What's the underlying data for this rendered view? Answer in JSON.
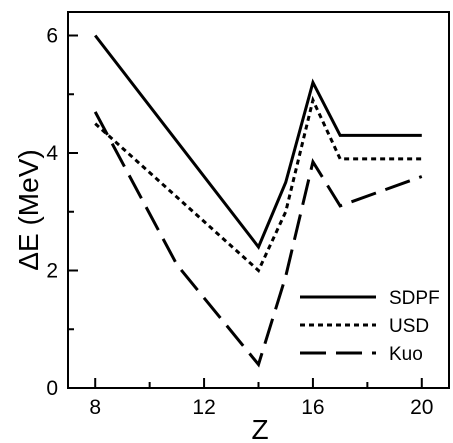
{
  "chart_data": {
    "type": "line",
    "title": "",
    "xlabel": "Z",
    "ylabel": "ΔE (MeV)",
    "xlim": [
      7,
      21
    ],
    "ylim": [
      0,
      6.4
    ],
    "xticks": [
      8,
      12,
      16,
      20
    ],
    "yticks": [
      0,
      2,
      4,
      6
    ],
    "grid": false,
    "legend_position": "bottom-right",
    "series": [
      {
        "name": "SDPF",
        "dash": "solid",
        "x": [
          8,
          14,
          15,
          16,
          17,
          20
        ],
        "y": [
          6.0,
          2.4,
          3.5,
          5.2,
          4.3,
          4.3
        ]
      },
      {
        "name": "USD",
        "dash": "dotted",
        "x": [
          8,
          14,
          15,
          16,
          17,
          20
        ],
        "y": [
          4.5,
          2.0,
          3.0,
          4.9,
          3.9,
          3.9
        ]
      },
      {
        "name": "Kuo",
        "dash": "dashed",
        "x": [
          8,
          11,
          14,
          15,
          16,
          17,
          20
        ],
        "y": [
          4.7,
          2.1,
          0.4,
          1.9,
          3.85,
          3.1,
          3.6
        ]
      }
    ]
  }
}
